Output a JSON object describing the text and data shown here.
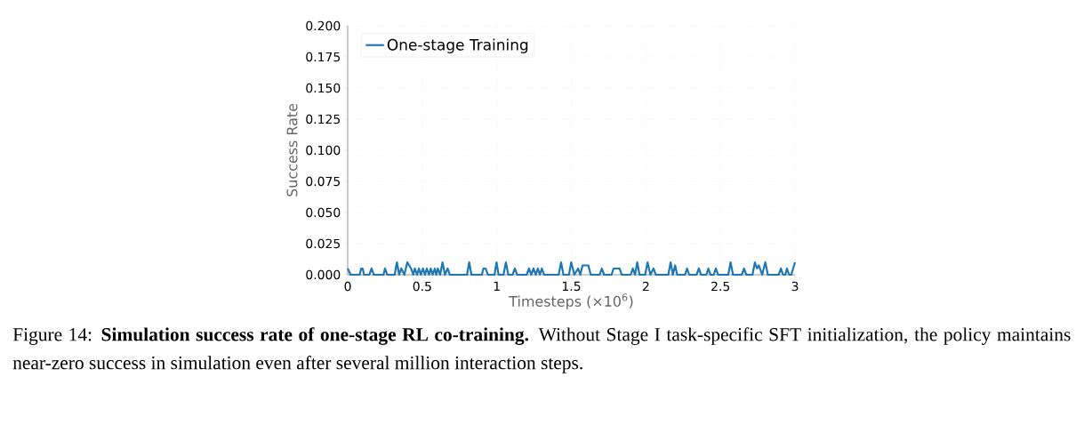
{
  "chart_data": {
    "type": "line",
    "xlabel": "Timesteps (×10$^{6}$)",
    "ylabel": "Success Rate",
    "xlim": [
      0,
      3
    ],
    "ylim": [
      0,
      0.2
    ],
    "xticks": [
      0,
      0.5,
      1,
      1.5,
      2,
      2.5,
      3
    ],
    "yticks": [
      {
        "value": 0,
        "label": "0.000"
      },
      {
        "value": 0.025,
        "label": "0.025"
      },
      {
        "value": 0.05,
        "label": "0.050"
      },
      {
        "value": 0.075,
        "label": "0.075"
      },
      {
        "value": 0.1,
        "label": "0.100"
      },
      {
        "value": 0.125,
        "label": "0.125"
      },
      {
        "value": 0.15,
        "label": "0.150"
      },
      {
        "value": 0.175,
        "label": "0.175"
      },
      {
        "value": 0.2,
        "label": "0.200"
      }
    ],
    "grid": true,
    "legend": "top left",
    "marker": "none",
    "line_style": "solid",
    "series": [
      {
        "name": "One-stage Training",
        "color": "#1f77b4",
        "x": [
          0,
          0.02,
          0.08,
          0.09,
          0.1,
          0.11,
          0.145,
          0.16,
          0.175,
          0.24,
          0.25,
          0.265,
          0.315,
          0.33,
          0.345,
          0.36,
          0.38,
          0.4,
          0.425,
          0.44,
          0.45,
          0.465,
          0.478,
          0.49,
          0.505,
          0.518,
          0.531,
          0.545,
          0.557,
          0.57,
          0.584,
          0.594,
          0.604,
          0.62,
          0.636,
          0.652,
          0.67,
          0.685,
          0.8,
          0.815,
          0.83,
          0.9,
          0.91,
          0.925,
          0.94,
          0.985,
          0.998,
          1.012,
          1.045,
          1.061,
          1.077,
          1.106,
          1.121,
          1.136,
          1.2,
          1.216,
          1.231,
          1.246,
          1.261,
          1.276,
          1.289,
          1.302,
          1.317,
          1.415,
          1.431,
          1.447,
          1.484,
          1.499,
          1.52,
          1.545,
          1.56,
          1.575,
          1.614,
          1.63,
          1.69,
          1.704,
          1.72,
          1.77,
          1.783,
          1.823,
          1.838,
          1.898,
          1.912,
          1.927,
          1.942,
          1.957,
          1.995,
          2.011,
          2.03,
          2.051,
          2.066,
          2.15,
          2.166,
          2.181,
          2.196,
          2.21,
          2.262,
          2.276,
          2.29,
          2.34,
          2.355,
          2.37,
          2.405,
          2.419,
          2.433,
          2.455,
          2.469,
          2.484,
          2.552,
          2.568,
          2.584,
          2.643,
          2.658,
          2.673,
          2.715,
          2.731,
          2.745,
          2.757,
          2.78,
          2.801,
          2.818,
          2.89,
          2.906,
          2.92,
          2.935,
          2.946,
          2.96,
          2.975,
          3.0
        ],
        "values": [
          0.005,
          0,
          0,
          0.005,
          0.005,
          0,
          0,
          0.005,
          0,
          0,
          0.005,
          0,
          0,
          0.01,
          0,
          0.005,
          0,
          0.01,
          0.005,
          0,
          0.005,
          0,
          0.005,
          0,
          0.005,
          0,
          0.005,
          0,
          0.005,
          0,
          0.005,
          0,
          0.005,
          0,
          0.01,
          0,
          0.005,
          0,
          0,
          0.01,
          0,
          0,
          0.005,
          0.005,
          0,
          0,
          0.01,
          0,
          0,
          0.01,
          0,
          0,
          0.005,
          0,
          0,
          0.005,
          0,
          0.005,
          0,
          0.005,
          0,
          0.005,
          0,
          0,
          0.01,
          0,
          0,
          0.01,
          0,
          0.005,
          0,
          0.0075,
          0.0075,
          0,
          0,
          0.005,
          0,
          0,
          0.005,
          0.005,
          0,
          0,
          0.005,
          0,
          0.01,
          0,
          0,
          0.01,
          0,
          0.005,
          0,
          0,
          0.01,
          0,
          0.0075,
          0,
          0,
          0.005,
          0,
          0,
          0.005,
          0,
          0,
          0.005,
          0,
          0,
          0.005,
          0,
          0,
          0.01,
          0,
          0,
          0.005,
          0,
          0,
          0.01,
          0.005,
          0.0075,
          0,
          0.01,
          0,
          0,
          0.005,
          0,
          0,
          0.005,
          0,
          0,
          0.01
        ]
      }
    ],
    "annotations": [
      "Figure 14: **Simulation success rate of one-stage RL co-training.** Without Stage I task-specific SFT initialization, the policy maintains near-zero success in simulation even after several million interaction steps."
    ]
  }
}
